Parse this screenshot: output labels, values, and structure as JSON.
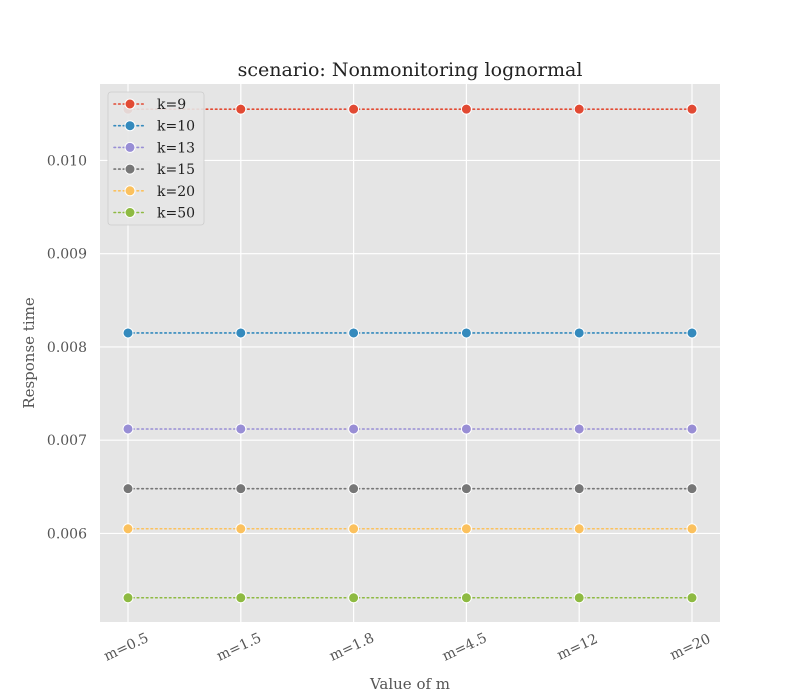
{
  "chart_data": {
    "type": "line",
    "title": "scenario: Nonmonitoring lognormal",
    "xlabel": "Value of m",
    "ylabel": "Response time",
    "categories": [
      "m=0.5",
      "m=1.5",
      "m=1.8",
      "m=4.5",
      "m=12",
      "m=20"
    ],
    "ylim": [
      0.00505,
      0.01082
    ],
    "yticks": [
      0.006,
      0.007,
      0.008,
      0.009,
      0.01
    ],
    "ytick_labels": [
      "0.006",
      "0.007",
      "0.008",
      "0.009",
      "0.010"
    ],
    "grid": true,
    "legend_position": "top-left",
    "line_style": "dotted",
    "series": [
      {
        "name": "k=9",
        "color": "#E24A33",
        "values": [
          0.01055,
          0.01055,
          0.01055,
          0.01055,
          0.01055,
          0.01055
        ]
      },
      {
        "name": "k=10",
        "color": "#348ABD",
        "values": [
          0.00815,
          0.00815,
          0.00815,
          0.00815,
          0.00815,
          0.00815
        ]
      },
      {
        "name": "k=13",
        "color": "#988ED5",
        "values": [
          0.00712,
          0.00712,
          0.00712,
          0.00712,
          0.00712,
          0.00712
        ]
      },
      {
        "name": "k=15",
        "color": "#777777",
        "values": [
          0.00648,
          0.00648,
          0.00648,
          0.00648,
          0.00648,
          0.00648
        ]
      },
      {
        "name": "k=20",
        "color": "#FBC15E",
        "values": [
          0.00605,
          0.00605,
          0.00605,
          0.00605,
          0.00605,
          0.00605
        ]
      },
      {
        "name": "k=50",
        "color": "#8EBA42",
        "values": [
          0.00531,
          0.00531,
          0.00531,
          0.00531,
          0.00531,
          0.00531
        ]
      }
    ]
  }
}
